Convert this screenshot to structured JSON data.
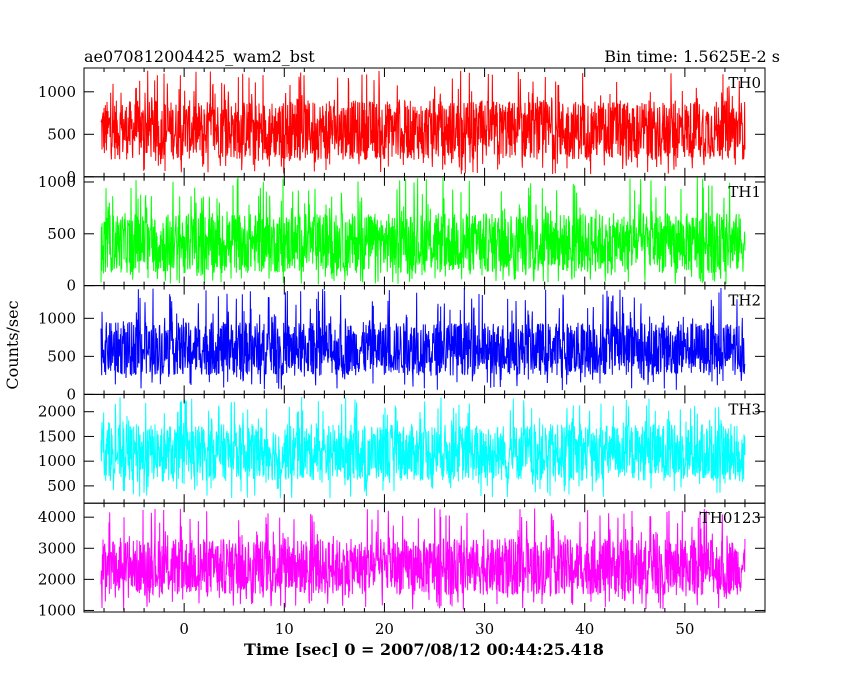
{
  "header": {
    "title": "ae070812004425_wam2_bst",
    "bin_time": "Bin time: 1.5625E-2 s"
  },
  "chart_data": {
    "type": "line",
    "title": "ae070812004425_wam2_bst",
    "xlabel": "Time [sec] 0 = 2007/08/12 00:44:25.418",
    "ylabel": "Counts/sec",
    "x_range": [
      -8.3,
      56.0
    ],
    "xlim": [
      -10,
      58
    ],
    "x_ticks": [
      0,
      10,
      20,
      30,
      40,
      50
    ],
    "x_tick_labels": [
      "0",
      "10",
      "20",
      "30",
      "40",
      "50"
    ],
    "bin_time_sec": 0.015625,
    "panels": [
      {
        "name": "TH0",
        "color": "#ff0000",
        "ylim": [
          0,
          1280
        ],
        "y_ticks": [
          0,
          500,
          1000
        ],
        "y_tick_labels": [
          "0",
          "500",
          "1000"
        ],
        "typical_range": [
          200,
          900
        ],
        "extreme_range": [
          30,
          1250
        ]
      },
      {
        "name": "TH1",
        "color": "#00ff00",
        "ylim": [
          0,
          1050
        ],
        "y_ticks": [
          0,
          500,
          1000
        ],
        "y_tick_labels": [
          "0",
          "500",
          "1000"
        ],
        "typical_range": [
          120,
          700
        ],
        "extreme_range": [
          10,
          1050
        ]
      },
      {
        "name": "TH2",
        "color": "#0000ff",
        "ylim": [
          0,
          1430
        ],
        "y_ticks": [
          0,
          500,
          1000
        ],
        "y_tick_labels": [
          "0",
          "500",
          "1000"
        ],
        "typical_range": [
          250,
          950
        ],
        "extreme_range": [
          50,
          1400
        ]
      },
      {
        "name": "TH3",
        "color": "#00ffff",
        "ylim": [
          150,
          2350
        ],
        "y_ticks": [
          500,
          1000,
          1500,
          2000
        ],
        "y_tick_labels": [
          "500",
          "1000",
          "1500",
          "2000"
        ],
        "typical_range": [
          600,
          1750
        ],
        "extreme_range": [
          250,
          2300
        ]
      },
      {
        "name": "TH0123",
        "color": "#ff00ff",
        "ylim": [
          950,
          4450
        ],
        "y_ticks": [
          1000,
          2000,
          3000,
          4000
        ],
        "y_tick_labels": [
          "1000",
          "2000",
          "3000",
          "4000"
        ],
        "typical_range": [
          1500,
          3300
        ],
        "extreme_range": [
          1000,
          4300
        ]
      }
    ]
  }
}
